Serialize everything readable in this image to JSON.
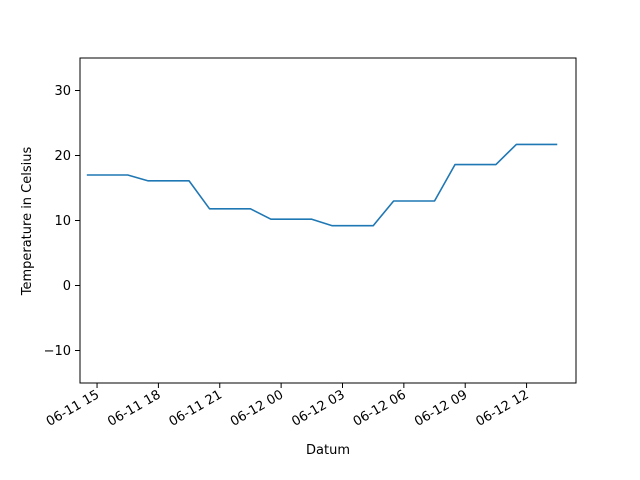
{
  "chart_data": {
    "type": "line",
    "title": "",
    "xlabel": "Datum",
    "ylabel": "Temperature in Celsius",
    "x_axis_type": "datetime",
    "xlim": [
      "2024-06-11 14:10",
      "2024-06-12 14:25"
    ],
    "ylim": [
      -15,
      35
    ],
    "x_ticks": [
      {
        "value": "2024-06-11 15:00",
        "label": "06-11 15"
      },
      {
        "value": "2024-06-11 18:00",
        "label": "06-11 18"
      },
      {
        "value": "2024-06-11 21:00",
        "label": "06-11 21"
      },
      {
        "value": "2024-06-12 00:00",
        "label": "06-12 00"
      },
      {
        "value": "2024-06-12 03:00",
        "label": "06-12 03"
      },
      {
        "value": "2024-06-12 06:00",
        "label": "06-12 06"
      },
      {
        "value": "2024-06-12 09:00",
        "label": "06-12 09"
      },
      {
        "value": "2024-06-12 12:00",
        "label": "06-12 12"
      }
    ],
    "y_ticks": [
      {
        "value": -10,
        "label": "−10"
      },
      {
        "value": 0,
        "label": "0"
      },
      {
        "value": 10,
        "label": "10"
      },
      {
        "value": 20,
        "label": "20"
      },
      {
        "value": 30,
        "label": "30"
      }
    ],
    "grid": false,
    "legend": "none",
    "series": [
      {
        "color": "#1f77b4",
        "points": [
          {
            "x": "2024-06-11 14:30",
            "y": 17.0
          },
          {
            "x": "2024-06-11 16:30",
            "y": 17.0
          },
          {
            "x": "2024-06-11 17:30",
            "y": 16.1
          },
          {
            "x": "2024-06-11 19:30",
            "y": 16.1
          },
          {
            "x": "2024-06-11 20:30",
            "y": 11.8
          },
          {
            "x": "2024-06-11 22:30",
            "y": 11.8
          },
          {
            "x": "2024-06-11 23:30",
            "y": 10.2
          },
          {
            "x": "2024-06-12 01:30",
            "y": 10.2
          },
          {
            "x": "2024-06-12 02:30",
            "y": 9.2
          },
          {
            "x": "2024-06-12 04:30",
            "y": 9.2
          },
          {
            "x": "2024-06-12 05:30",
            "y": 13.0
          },
          {
            "x": "2024-06-12 07:30",
            "y": 13.0
          },
          {
            "x": "2024-06-12 08:30",
            "y": 18.6
          },
          {
            "x": "2024-06-12 10:30",
            "y": 18.6
          },
          {
            "x": "2024-06-12 11:30",
            "y": 21.7
          },
          {
            "x": "2024-06-12 13:30",
            "y": 21.7
          }
        ]
      }
    ]
  }
}
